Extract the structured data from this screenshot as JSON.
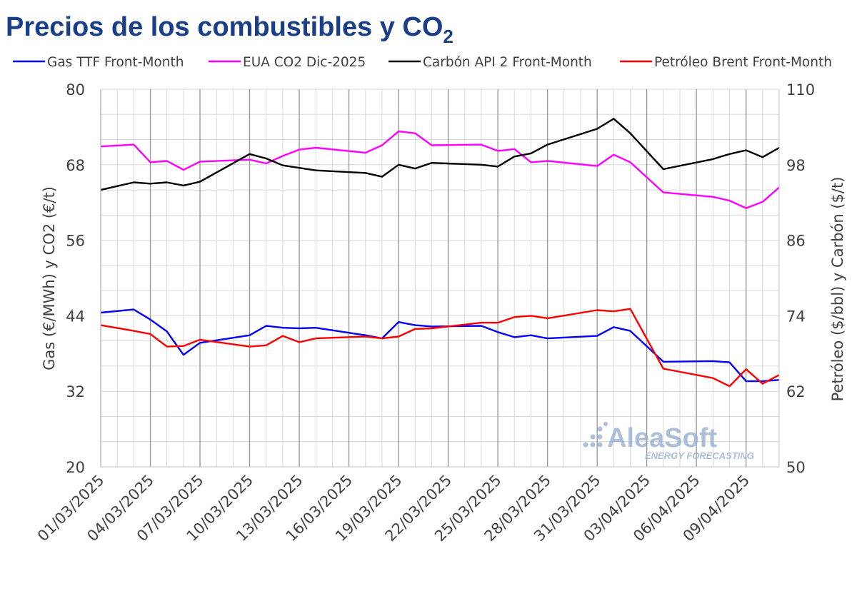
{
  "chart_data": {
    "type": "line",
    "title": "Precios de los combustibles y CO",
    "title_subscript": "2",
    "ylabel": "Gas (€/MWh) y CO2 (€/t)",
    "y2label": "Petróleo ($/bbl) y Carbón ($/t)",
    "ylim": [
      20,
      80
    ],
    "y2lim": [
      50,
      110
    ],
    "yticks": [
      "20",
      "32",
      "44",
      "56",
      "68",
      "80"
    ],
    "y2ticks": [
      "50",
      "62",
      "74",
      "86",
      "98",
      "110"
    ],
    "grid": true,
    "legend": "top",
    "watermark": "AleaSoft",
    "watermark_sub": "ENERGY FORECASTING",
    "x": [
      "01/03/2025",
      "02/03/2025",
      "03/03/2025",
      "04/03/2025",
      "05/03/2025",
      "06/03/2025",
      "07/03/2025",
      "08/03/2025",
      "09/03/2025",
      "10/03/2025",
      "11/03/2025",
      "12/03/2025",
      "13/03/2025",
      "14/03/2025",
      "15/03/2025",
      "16/03/2025",
      "17/03/2025",
      "18/03/2025",
      "19/03/2025",
      "20/03/2025",
      "21/03/2025",
      "22/03/2025",
      "23/03/2025",
      "24/03/2025",
      "25/03/2025",
      "26/03/2025",
      "27/03/2025",
      "28/03/2025",
      "29/03/2025",
      "30/03/2025",
      "31/03/2025",
      "01/04/2025",
      "02/04/2025",
      "03/04/2025",
      "04/04/2025",
      "05/04/2025",
      "06/04/2025",
      "07/04/2025",
      "08/04/2025",
      "09/04/2025",
      "10/04/2025",
      "11/04/2025"
    ],
    "xtick_labels": [
      "01/03/2025",
      "04/03/2025",
      "07/03/2025",
      "10/03/2025",
      "13/03/2025",
      "16/03/2025",
      "19/03/2025",
      "22/03/2025",
      "25/03/2025",
      "28/03/2025",
      "31/03/2025",
      "03/04/2025",
      "06/04/2025",
      "09/04/2025"
    ],
    "series": [
      {
        "name": "Gas TTF Front-Month",
        "axis": "left",
        "color": "#0000ff",
        "values": [
          44.5,
          null,
          45.0,
          43.4,
          41.5,
          37.8,
          39.7,
          null,
          null,
          40.9,
          42.4,
          42.1,
          42.0,
          42.1,
          null,
          null,
          40.9,
          40.4,
          43.0,
          42.5,
          42.3,
          null,
          null,
          42.4,
          41.4,
          40.6,
          40.9,
          40.4,
          null,
          null,
          40.8,
          42.2,
          41.6,
          null,
          36.7,
          null,
          null,
          36.8,
          36.6,
          33.6,
          33.6,
          33.8
        ]
      },
      {
        "name": "EUA CO2 Dic-2025",
        "axis": "left",
        "color": "#ff00ff",
        "values": [
          70.9,
          null,
          71.2,
          68.4,
          68.6,
          67.2,
          68.5,
          null,
          null,
          68.8,
          68.2,
          69.4,
          70.4,
          70.7,
          null,
          null,
          69.9,
          71.1,
          73.3,
          73.0,
          71.1,
          null,
          null,
          71.2,
          70.2,
          70.5,
          68.4,
          68.6,
          null,
          null,
          67.8,
          69.6,
          68.4,
          null,
          63.6,
          null,
          null,
          62.9,
          62.3,
          61.1,
          62.1,
          64.4
        ]
      },
      {
        "name": "Carbón API 2 Front-Month",
        "axis": "right",
        "color": "#000000",
        "values": [
          94.0,
          null,
          95.2,
          95.0,
          95.2,
          94.7,
          95.3,
          null,
          null,
          99.7,
          99.0,
          97.9,
          97.5,
          97.1,
          null,
          null,
          96.7,
          96.1,
          98.0,
          97.4,
          98.3,
          null,
          null,
          98.0,
          97.7,
          99.3,
          99.8,
          101.2,
          null,
          null,
          103.7,
          105.3,
          103.0,
          null,
          97.3,
          null,
          null,
          98.9,
          99.7,
          100.3,
          99.2,
          100.7
        ]
      },
      {
        "name": "Petróleo Brent Front-Month",
        "axis": "right",
        "color": "#ff0000",
        "values": [
          72.5,
          null,
          71.6,
          71.1,
          69.1,
          69.2,
          70.2,
          null,
          null,
          69.1,
          69.3,
          70.8,
          69.8,
          70.4,
          null,
          null,
          70.7,
          70.4,
          70.7,
          71.9,
          72.0,
          null,
          null,
          72.9,
          72.9,
          73.8,
          74.0,
          73.6,
          null,
          null,
          74.9,
          74.7,
          75.1,
          null,
          65.6,
          null,
          null,
          64.1,
          62.8,
          65.5,
          63.2,
          64.6
        ]
      }
    ]
  }
}
